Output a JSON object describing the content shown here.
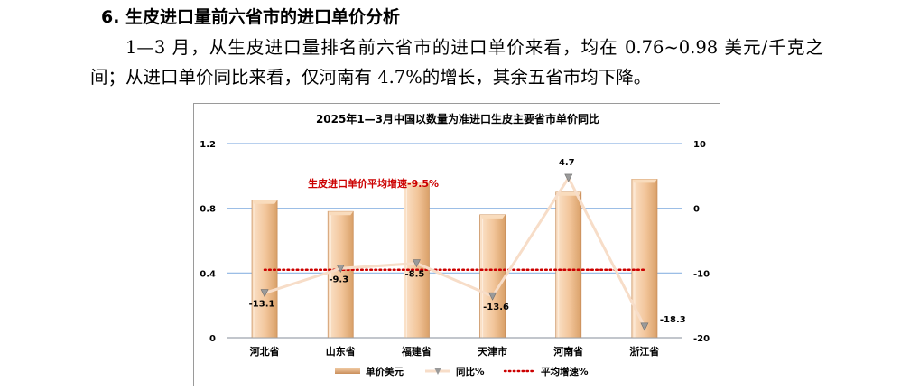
{
  "section": {
    "heading": "6. 生皮进口量前六省市的进口单价分析",
    "paragraph": "1—3 月，从生皮进口量排名前六省市的进口单价来看，均在 0.76~0.98 美元/千克之间；从进口单价同比来看，仅河南有 4.7%的增长，其余五省市均下降。"
  },
  "chart_data": {
    "type": "bar",
    "title": "2025年1—3月中国以数量为准进口生皮主要省市单价同比",
    "categories": [
      "河北省",
      "山东省",
      "福建省",
      "天津市",
      "河南省",
      "浙江省"
    ],
    "series": [
      {
        "name": "单价美元",
        "type": "bar",
        "axis": "left",
        "values": [
          0.85,
          0.78,
          0.96,
          0.76,
          0.9,
          0.98
        ]
      },
      {
        "name": "同比%",
        "type": "line",
        "axis": "right",
        "values": [
          -13.1,
          -9.3,
          -8.5,
          -13.6,
          4.7,
          -18.3
        ]
      },
      {
        "name": "平均增速%",
        "type": "line",
        "axis": "right",
        "values": [
          -9.5,
          -9.5,
          -9.5,
          -9.5,
          -9.5,
          -9.5
        ]
      }
    ],
    "left_axis": {
      "ticks": [
        "0",
        "0.4",
        "0.8",
        "1.2"
      ],
      "ylim": [
        0,
        1.2
      ]
    },
    "right_axis": {
      "ticks": [
        "10",
        "0",
        "-10",
        "-20"
      ],
      "ylim": [
        -20,
        10
      ]
    },
    "annotation": "生皮进口单价平均增速-9.5%",
    "grid": true,
    "legend_position": "bottom",
    "colors": {
      "bar": "#f2c59a",
      "bar_side": "#c98e5a",
      "yoy_line": "#f7ddc8",
      "marker": "#9a9a9a",
      "avg_line": "#cc0000",
      "gridline": "#8eb4e3"
    }
  }
}
